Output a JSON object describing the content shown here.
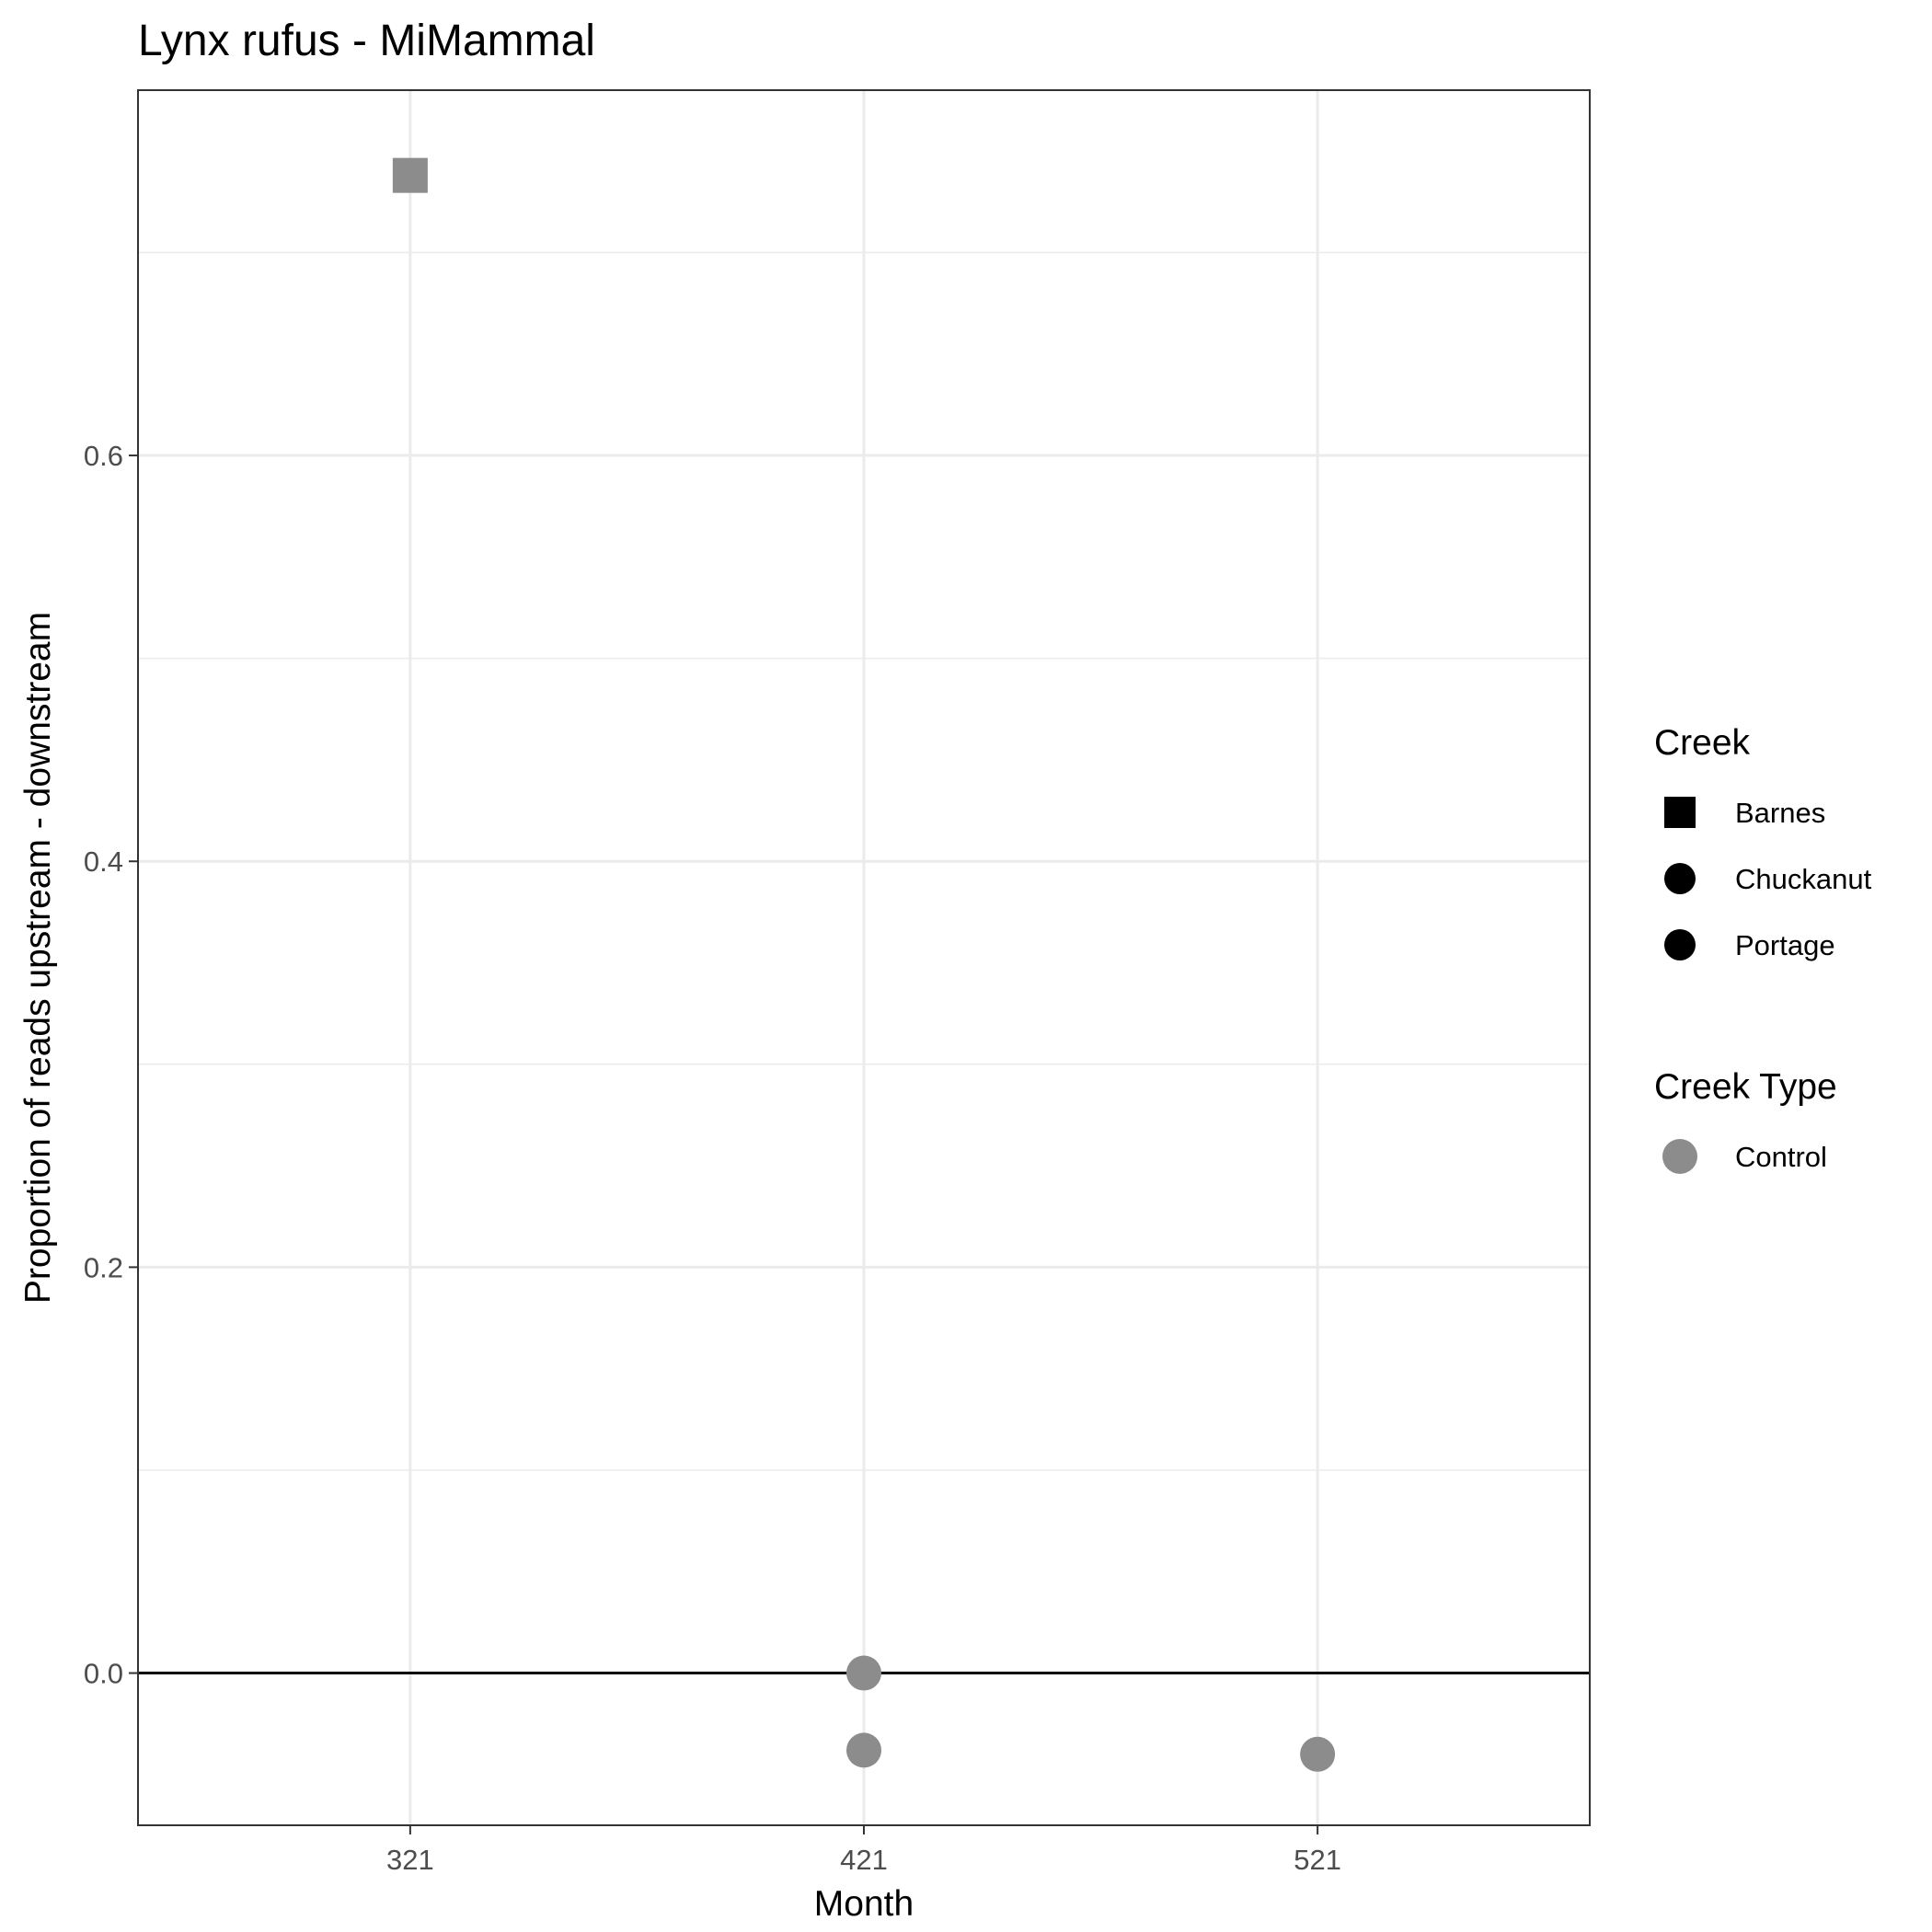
{
  "chart_data": {
    "type": "scatter",
    "title": "Lynx rufus - MiMammal",
    "xlabel": "Month",
    "ylabel": "Proportion of reads upstream - downstream",
    "x_categories": [
      "321",
      "421",
      "521"
    ],
    "ylim": [
      -0.075,
      0.78
    ],
    "y_ticks": [
      0.0,
      0.2,
      0.4,
      0.6
    ],
    "y_tick_labels": [
      "0.0",
      "0.2",
      "0.4",
      "0.6"
    ],
    "grid": true,
    "reference_line_y": 0,
    "points": [
      {
        "x": "321",
        "y": 0.738,
        "creek": "Barnes",
        "creek_type": "Control"
      },
      {
        "x": "421",
        "y": 0.0,
        "creek": "Chuckanut",
        "creek_type": "Control"
      },
      {
        "x": "421",
        "y": -0.038,
        "creek": "Portage",
        "creek_type": "Control"
      },
      {
        "x": "521",
        "y": -0.04,
        "creek": "Portage",
        "creek_type": "Control"
      }
    ],
    "legend": {
      "placement": "right",
      "creek": {
        "title": "Creek",
        "entries": [
          {
            "label": "Barnes",
            "shape": "square"
          },
          {
            "label": "Chuckanut",
            "shape": "circle"
          },
          {
            "label": "Portage",
            "shape": "circle"
          }
        ]
      },
      "creek_type": {
        "title": "Creek Type",
        "entries": [
          {
            "label": "Control",
            "shape": "circle",
            "color": "#8c8c8c"
          }
        ]
      }
    },
    "colors": {
      "point": "#8c8c8c",
      "legend_shape": "#000000",
      "grid": "#ebebeb",
      "zero_line": "#000000",
      "panel_border": "#333333"
    }
  }
}
